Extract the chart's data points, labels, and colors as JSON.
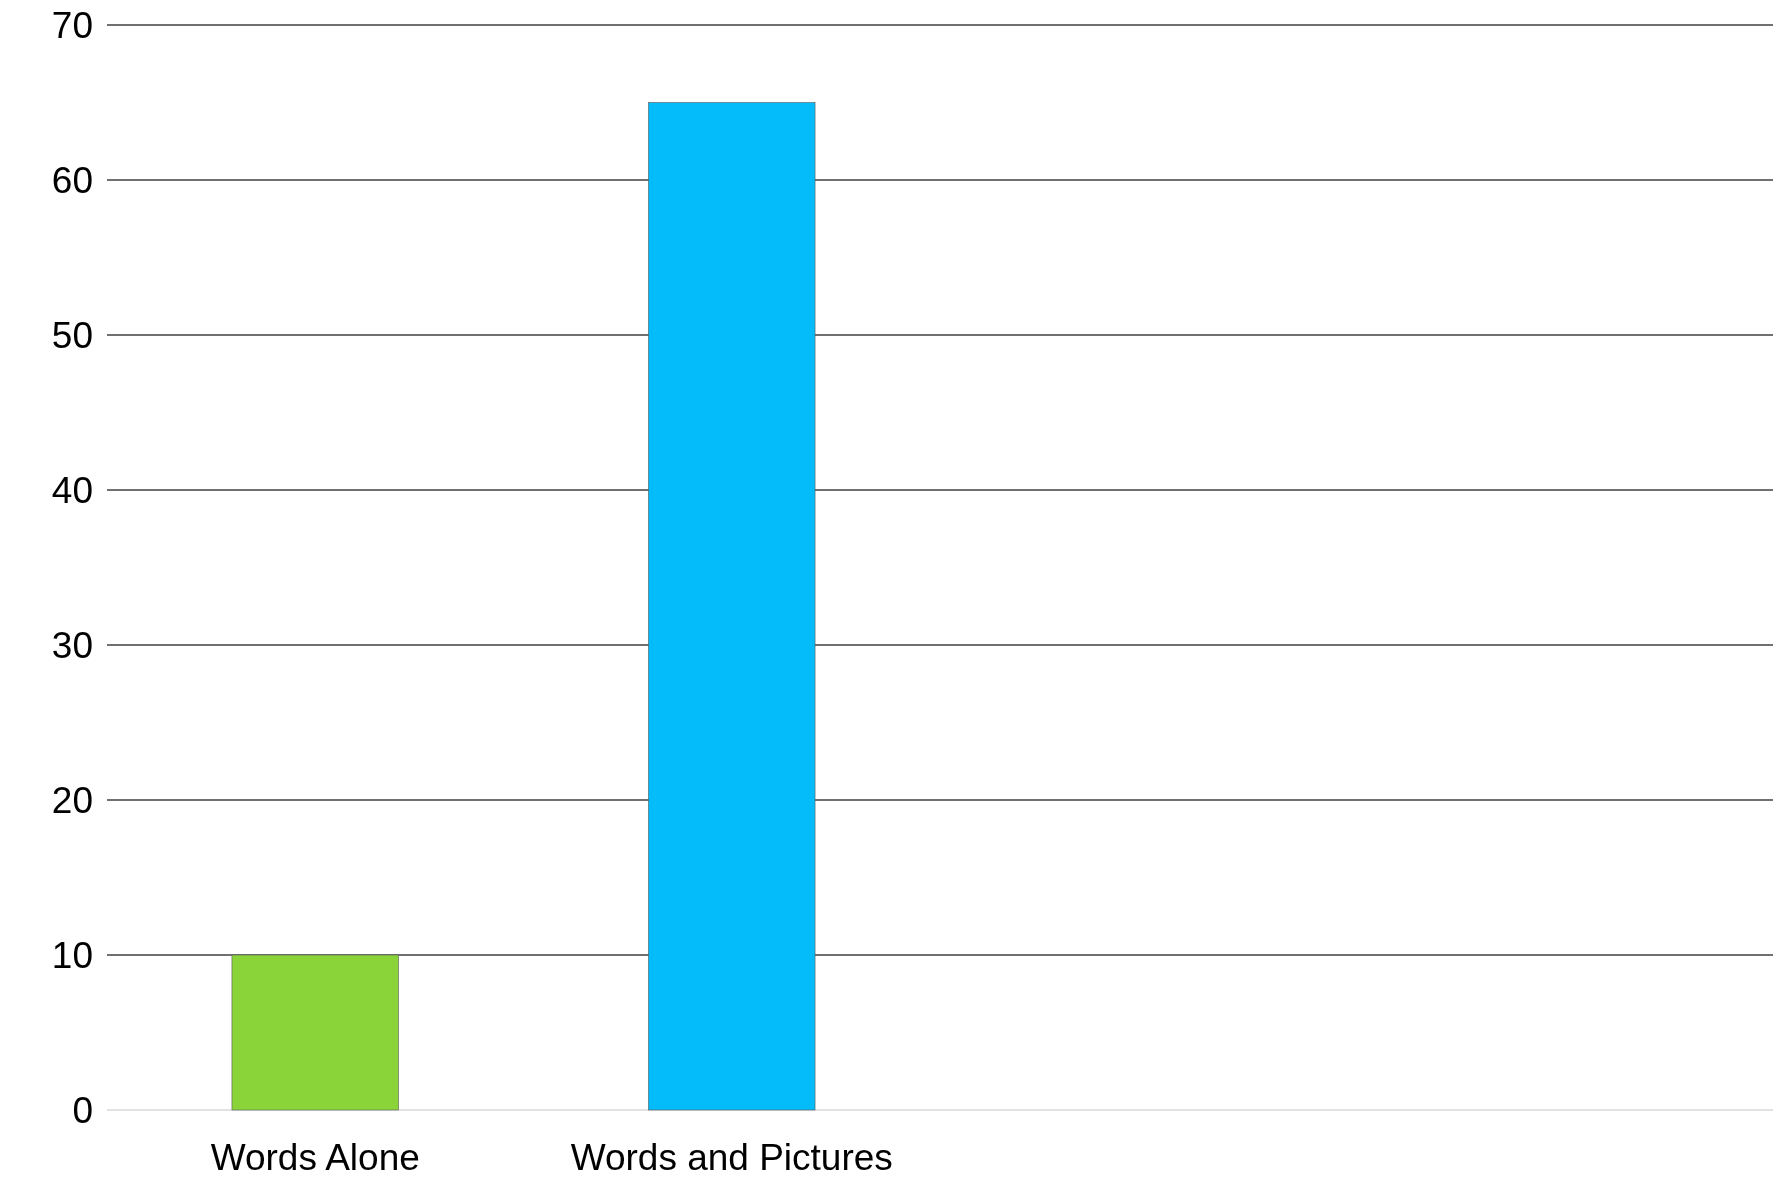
{
  "chart_data": {
    "type": "bar",
    "categories": [
      "Words Alone",
      "Words and Pictures",
      null,
      null
    ],
    "values": [
      10,
      65,
      null,
      null
    ],
    "colors": [
      "#8ad43a",
      "#05bcfb",
      null,
      null
    ],
    "ylim": [
      0,
      70
    ],
    "yticks": [
      0,
      10,
      20,
      30,
      40,
      50,
      60,
      70
    ],
    "grid": "y"
  }
}
